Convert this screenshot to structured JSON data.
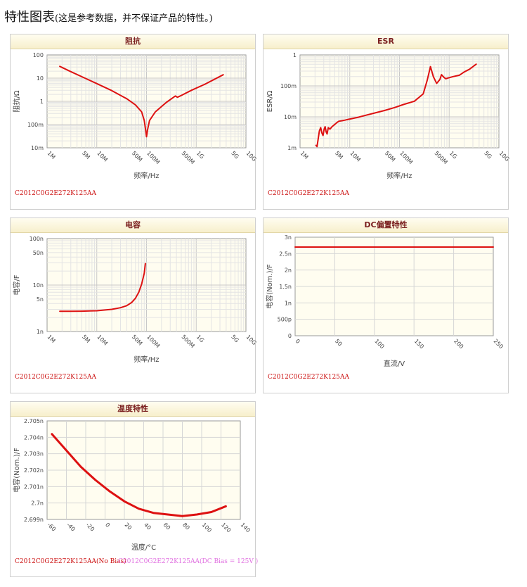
{
  "page": {
    "title": "特性图表",
    "note": "(这是参考数据，并不保证产品的特性。)"
  },
  "charts": {
    "impedance": {
      "header": "阻抗",
      "part_label": "C2012C0G2E272K125AA"
    },
    "esr": {
      "header": "ESR",
      "part_label": "C2012C0G2E272K125AA"
    },
    "capacitance": {
      "header": "电容",
      "part_label": "C2012C0G2E272K125AA"
    },
    "dcbias": {
      "header": "DC偏置特性",
      "part_label": "C2012C0G2E272K125AA"
    },
    "temperature": {
      "header": "温度特性",
      "part_label": "C2012C0G2E272K125AA(No Bias)",
      "part_label_2": "C2012C0G2E272K125AA(DC Bias = 125V )"
    }
  },
  "colors": {
    "series_red": "#dd1111",
    "series_pink": "#e070e0",
    "header_text": "#7a1e1e"
  },
  "chart_data": [
    {
      "id": "impedance",
      "type": "line",
      "title": "阻抗",
      "xlabel": "频率/Hz",
      "ylabel": "阻抗/Ω",
      "xscale": "log",
      "yscale": "log",
      "xlim": [
        1000000,
        10000000000
      ],
      "ylim": [
        0.01,
        100
      ],
      "xticks": [
        {
          "v": 1000000,
          "label": "1M"
        },
        {
          "v": 5000000,
          "label": "5M"
        },
        {
          "v": 10000000,
          "label": "10M"
        },
        {
          "v": 50000000,
          "label": "50M"
        },
        {
          "v": 100000000,
          "label": "100M"
        },
        {
          "v": 500000000,
          "label": "500M"
        },
        {
          "v": 1000000000,
          "label": "1G"
        },
        {
          "v": 5000000000,
          "label": "5G"
        },
        {
          "v": 10000000000,
          "label": "10G"
        }
      ],
      "yticks": [
        {
          "v": 0.01,
          "label": "10m"
        },
        {
          "v": 0.1,
          "label": "100m"
        },
        {
          "v": 1,
          "label": "1"
        },
        {
          "v": 10,
          "label": "10"
        },
        {
          "v": 100,
          "label": "100"
        }
      ],
      "grid": true,
      "series": [
        {
          "color": "#dd1111",
          "x": [
            1800000,
            3000000,
            5000000,
            10000000,
            20000000,
            40000000,
            60000000,
            80000000,
            90000000,
            96000000,
            100000000,
            105000000,
            115000000,
            150000000,
            250000000,
            380000000,
            420000000,
            500000000,
            800000000,
            1500000000,
            3500000000
          ],
          "y": [
            32,
            19,
            11.5,
            5.8,
            2.9,
            1.3,
            0.7,
            0.35,
            0.15,
            0.06,
            0.03,
            0.06,
            0.15,
            0.35,
            0.9,
            1.7,
            1.5,
            1.8,
            3,
            5.5,
            14
          ]
        }
      ]
    },
    {
      "id": "esr",
      "type": "line",
      "title": "ESR",
      "xlabel": "频率/Hz",
      "ylabel": "ESR/Ω",
      "xscale": "log",
      "yscale": "log",
      "xlim": [
        1000000,
        10000000000
      ],
      "ylim": [
        0.001,
        1
      ],
      "xticks": [
        {
          "v": 1000000,
          "label": "1M"
        },
        {
          "v": 5000000,
          "label": "5M"
        },
        {
          "v": 10000000,
          "label": "10M"
        },
        {
          "v": 50000000,
          "label": "50M"
        },
        {
          "v": 100000000,
          "label": "100M"
        },
        {
          "v": 500000000,
          "label": "500M"
        },
        {
          "v": 1000000000,
          "label": "1G"
        },
        {
          "v": 5000000000,
          "label": "5G"
        },
        {
          "v": 10000000000,
          "label": "10G"
        }
      ],
      "yticks": [
        {
          "v": 0.001,
          "label": "1m"
        },
        {
          "v": 0.01,
          "label": "10m"
        },
        {
          "v": 0.1,
          "label": "100m"
        },
        {
          "v": 1,
          "label": "1"
        }
      ],
      "grid": true,
      "series": [
        {
          "color": "#dd1111",
          "x": [
            2100000,
            2200000,
            2300000,
            2450000,
            2600000,
            2750000,
            2900000,
            3050000,
            3200000,
            3350000,
            3500000,
            3700000,
            4000000,
            4400000,
            5000000,
            5500000,
            6000000,
            7000000,
            8000000,
            10000000,
            14000000,
            20000000,
            30000000,
            50000000,
            80000000,
            120000000,
            200000000,
            300000000,
            360000000,
            420000000,
            480000000,
            560000000,
            650000000,
            700000000,
            780000000,
            850000000,
            950000000,
            1200000000,
            1600000000,
            2000000000,
            2600000000,
            3500000000
          ],
          "y": [
            0.0012,
            0.0011,
            0.0018,
            0.0035,
            0.0045,
            0.003,
            0.0025,
            0.004,
            0.0048,
            0.0033,
            0.0028,
            0.0045,
            0.004,
            0.0048,
            0.0057,
            0.0065,
            0.0072,
            0.0075,
            0.0078,
            0.0085,
            0.0095,
            0.011,
            0.013,
            0.016,
            0.02,
            0.025,
            0.032,
            0.055,
            0.15,
            0.42,
            0.2,
            0.12,
            0.16,
            0.23,
            0.19,
            0.17,
            0.18,
            0.2,
            0.22,
            0.28,
            0.35,
            0.5
          ]
        }
      ]
    },
    {
      "id": "capacitance",
      "type": "line",
      "title": "电容",
      "xlabel": "频率/Hz",
      "ylabel": "电容/F",
      "xscale": "log",
      "yscale": "log",
      "xlim": [
        1000000,
        10000000000
      ],
      "ylim": [
        1e-09,
        1e-07
      ],
      "xticks": [
        {
          "v": 1000000,
          "label": "1M"
        },
        {
          "v": 5000000,
          "label": "5M"
        },
        {
          "v": 10000000,
          "label": "10M"
        },
        {
          "v": 50000000,
          "label": "50M"
        },
        {
          "v": 100000000,
          "label": "100M"
        },
        {
          "v": 500000000,
          "label": "500M"
        },
        {
          "v": 1000000000,
          "label": "1G"
        },
        {
          "v": 5000000000,
          "label": "5G"
        },
        {
          "v": 10000000000,
          "label": "10G"
        }
      ],
      "yticks": [
        {
          "v": 1e-09,
          "label": "1n"
        },
        {
          "v": 5e-09,
          "label": "5n"
        },
        {
          "v": 1e-08,
          "label": "10n"
        },
        {
          "v": 5e-08,
          "label": "50n"
        },
        {
          "v": 1e-07,
          "label": "100n"
        }
      ],
      "grid": true,
      "series": [
        {
          "color": "#dd1111",
          "x": [
            1800000,
            3000000,
            5000000,
            10000000,
            20000000,
            30000000,
            40000000,
            50000000,
            60000000,
            70000000,
            80000000,
            90000000,
            95000000
          ],
          "y": [
            2.72e-09,
            2.72e-09,
            2.74e-09,
            2.8e-09,
            3e-09,
            3.25e-09,
            3.6e-09,
            4.2e-09,
            5.2e-09,
            7e-09,
            1.05e-08,
            1.8e-08,
            2.9e-08
          ]
        }
      ]
    },
    {
      "id": "dcbias",
      "type": "line",
      "title": "DC偏置特性",
      "xlabel": "直流/V",
      "ylabel": "电容(Nom.)/F",
      "xscale": "linear",
      "yscale": "linear",
      "xlim": [
        0,
        250
      ],
      "ylim": [
        0,
        3e-09
      ],
      "xticks": [
        {
          "v": 0,
          "label": "0"
        },
        {
          "v": 50,
          "label": "50"
        },
        {
          "v": 100,
          "label": "100"
        },
        {
          "v": 150,
          "label": "150"
        },
        {
          "v": 200,
          "label": "200"
        },
        {
          "v": 250,
          "label": "250"
        }
      ],
      "yticks": [
        {
          "v": 0,
          "label": "0"
        },
        {
          "v": 5e-10,
          "label": "500p"
        },
        {
          "v": 1e-09,
          "label": "1n"
        },
        {
          "v": 1.5e-09,
          "label": "1.5n"
        },
        {
          "v": 2e-09,
          "label": "2n"
        },
        {
          "v": 2.5e-09,
          "label": "2.5n"
        },
        {
          "v": 3e-09,
          "label": "3n"
        }
      ],
      "grid": true,
      "series": [
        {
          "color": "#dd1111",
          "x": [
            0,
            250
          ],
          "y": [
            2.7e-09,
            2.7e-09
          ]
        }
      ]
    },
    {
      "id": "temperature",
      "type": "line",
      "title": "温度特性",
      "xlabel": "温度/°C",
      "ylabel": "电容(Nom.)/F",
      "xscale": "linear",
      "yscale": "linear",
      "xlim": [
        -60,
        140
      ],
      "ylim": [
        2.699e-09,
        2.705e-09
      ],
      "xticks": [
        {
          "v": -60,
          "label": "-60"
        },
        {
          "v": -40,
          "label": "-40"
        },
        {
          "v": -20,
          "label": "-20"
        },
        {
          "v": 0,
          "label": "0"
        },
        {
          "v": 20,
          "label": "20"
        },
        {
          "v": 40,
          "label": "40"
        },
        {
          "v": 60,
          "label": "60"
        },
        {
          "v": 80,
          "label": "80"
        },
        {
          "v": 100,
          "label": "100"
        },
        {
          "v": 120,
          "label": "120"
        },
        {
          "v": 140,
          "label": "140"
        }
      ],
      "yticks": [
        {
          "v": 2.699e-09,
          "label": "2.699n"
        },
        {
          "v": 2.7e-09,
          "label": "2.7n"
        },
        {
          "v": 2.701e-09,
          "label": "2.701n"
        },
        {
          "v": 2.702e-09,
          "label": "2.702n"
        },
        {
          "v": 2.703e-09,
          "label": "2.703n"
        },
        {
          "v": 2.704e-09,
          "label": "2.704n"
        },
        {
          "v": 2.705e-09,
          "label": "2.705n"
        }
      ],
      "grid": true,
      "series": [
        {
          "name": "C2012C0G2E272K125AA(No Bias)",
          "color": "#dd1111",
          "x": [
            -55,
            -40,
            -25,
            -10,
            5,
            20,
            35,
            50,
            65,
            80,
            95,
            110,
            125
          ],
          "y": [
            2.7042e-09,
            2.7032e-09,
            2.7022e-09,
            2.7014e-09,
            2.7007e-09,
            2.7001e-09,
            2.69965e-09,
            2.6994e-09,
            2.6993e-09,
            2.6992e-09,
            2.6993e-09,
            2.69945e-09,
            2.6998e-09
          ]
        },
        {
          "name": "C2012C0G2E272K125AA(DC Bias = 125V )",
          "color": "#e070e0",
          "x": [
            -55,
            -40,
            -25,
            -10,
            5,
            20,
            35,
            50,
            65,
            80,
            95,
            110,
            125
          ],
          "y": [
            2.7042e-09,
            2.7032e-09,
            2.7022e-09,
            2.7014e-09,
            2.7007e-09,
            2.7001e-09,
            2.69965e-09,
            2.6994e-09,
            2.6993e-09,
            2.6992e-09,
            2.6993e-09,
            2.69945e-09,
            2.6998e-09
          ]
        }
      ]
    }
  ]
}
